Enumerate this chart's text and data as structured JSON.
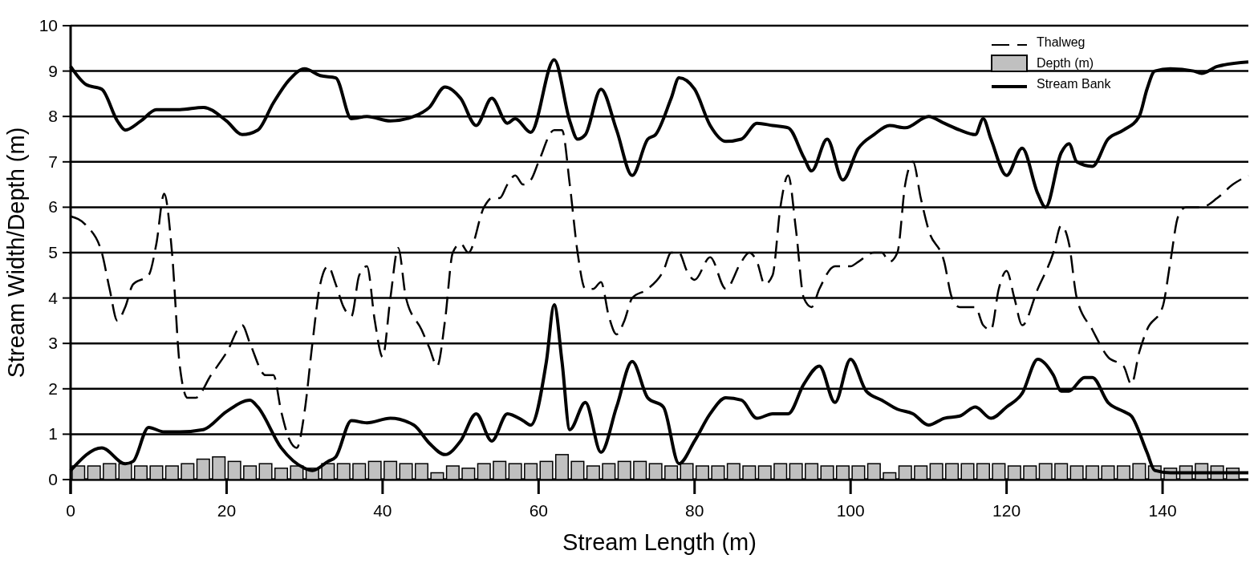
{
  "chart_data": {
    "type": "line",
    "xlabel": "Stream Length (m)",
    "ylabel": "Stream Width/Depth (m)",
    "xlim": [
      0,
      151
    ],
    "ylim": [
      0,
      10
    ],
    "xticks": [
      0,
      20,
      40,
      60,
      80,
      100,
      120,
      140
    ],
    "yticks": [
      0,
      1,
      2,
      3,
      4,
      5,
      6,
      7,
      8,
      9,
      10
    ],
    "grid": "y",
    "legend": "top right",
    "series": [
      {
        "name": "Thalweg",
        "color": "#000000",
        "line_style": "dashed",
        "x": [
          0,
          2,
          4,
          5,
          6,
          7,
          8,
          10,
          11,
          12,
          13,
          14,
          15,
          16,
          18,
          20,
          22,
          23,
          25,
          26,
          27,
          28,
          29,
          30,
          31,
          32,
          33,
          34,
          35,
          36,
          37,
          38,
          39,
          40,
          41,
          42,
          43,
          45,
          46,
          47,
          48,
          49,
          50,
          51,
          53,
          54,
          55,
          56,
          57,
          58,
          59,
          60,
          62,
          63,
          64,
          65,
          66,
          67,
          68,
          69,
          70,
          71,
          72,
          74,
          76,
          77,
          78,
          79,
          80,
          82,
          84,
          86,
          87,
          88,
          89,
          90,
          91,
          92,
          93,
          94,
          95,
          96,
          98,
          100,
          101,
          103,
          104,
          105,
          106,
          107,
          108,
          109,
          110,
          112,
          113,
          114,
          116,
          117,
          118,
          119,
          120,
          121,
          122,
          124,
          126,
          127,
          128,
          129,
          131,
          133,
          135,
          136,
          137,
          138,
          140,
          141,
          142,
          143,
          145,
          147,
          149,
          151
        ],
        "values": [
          5.8,
          5.6,
          5.0,
          4.2,
          3.5,
          3.8,
          4.3,
          4.5,
          5.2,
          6.3,
          5.0,
          2.5,
          1.8,
          1.8,
          2.3,
          2.8,
          3.4,
          3.0,
          2.3,
          2.3,
          1.5,
          0.9,
          0.7,
          1.5,
          3.0,
          4.3,
          4.7,
          4.3,
          3.8,
          3.6,
          4.5,
          4.7,
          3.5,
          2.7,
          4.0,
          5.1,
          4.0,
          3.3,
          2.9,
          2.5,
          3.5,
          5.0,
          5.2,
          5.0,
          6.0,
          6.2,
          6.2,
          6.5,
          6.7,
          6.5,
          6.6,
          7.0,
          7.7,
          7.7,
          6.5,
          5.0,
          4.2,
          4.2,
          4.35,
          3.6,
          3.2,
          3.5,
          4.0,
          4.2,
          4.6,
          5.0,
          5.0,
          4.6,
          4.4,
          4.9,
          4.2,
          4.8,
          5.0,
          4.8,
          4.3,
          4.5,
          6.0,
          6.7,
          5.5,
          4.0,
          3.8,
          4.2,
          4.7,
          4.7,
          4.8,
          5.0,
          5.0,
          4.8,
          5.0,
          6.5,
          7.0,
          6.2,
          5.5,
          4.8,
          4.0,
          3.8,
          3.8,
          3.4,
          3.3,
          4.2,
          4.6,
          4.0,
          3.4,
          4.2,
          5.0,
          5.6,
          5.2,
          4.0,
          3.3,
          2.7,
          2.5,
          2.1,
          2.8,
          3.3,
          3.8,
          4.8,
          5.8,
          6.0,
          6.0,
          6.2,
          6.5,
          6.7
        ]
      },
      {
        "name": "Depth (m)",
        "type": "bar",
        "color": "#c0c0c0",
        "x": [
          1,
          3,
          5,
          7,
          9,
          11,
          13,
          15,
          17,
          19,
          21,
          23,
          25,
          27,
          29,
          31,
          33,
          35,
          37,
          39,
          41,
          43,
          45,
          47,
          49,
          51,
          53,
          55,
          57,
          59,
          61,
          63,
          65,
          67,
          69,
          71,
          73,
          75,
          77,
          79,
          81,
          83,
          85,
          87,
          89,
          91,
          93,
          95,
          97,
          99,
          101,
          103,
          105,
          107,
          109,
          111,
          113,
          115,
          117,
          119,
          121,
          123,
          125,
          127,
          129,
          131,
          133,
          135,
          137,
          139,
          141,
          143,
          145,
          147,
          149
        ],
        "values": [
          0.3,
          0.3,
          0.35,
          0.35,
          0.3,
          0.3,
          0.3,
          0.35,
          0.45,
          0.5,
          0.4,
          0.3,
          0.35,
          0.25,
          0.3,
          0.25,
          0.35,
          0.35,
          0.35,
          0.4,
          0.4,
          0.35,
          0.35,
          0.15,
          0.3,
          0.25,
          0.35,
          0.4,
          0.35,
          0.35,
          0.4,
          0.55,
          0.4,
          0.3,
          0.35,
          0.4,
          0.4,
          0.35,
          0.3,
          0.35,
          0.3,
          0.3,
          0.35,
          0.3,
          0.3,
          0.35,
          0.35,
          0.35,
          0.3,
          0.3,
          0.3,
          0.35,
          0.15,
          0.3,
          0.3,
          0.35,
          0.35,
          0.35,
          0.35,
          0.35,
          0.3,
          0.3,
          0.35,
          0.35,
          0.3,
          0.3,
          0.3,
          0.3,
          0.35,
          0.3,
          0.25,
          0.3,
          0.35,
          0.3,
          0.25
        ]
      },
      {
        "name": "Stream Bank",
        "color": "#000000",
        "line_style": "solid",
        "x": [
          0,
          2,
          4,
          6,
          7,
          9,
          11,
          14,
          17,
          20,
          22,
          24,
          26,
          28,
          30,
          32,
          34,
          36,
          38,
          41,
          44,
          46,
          48,
          50,
          52,
          54,
          56,
          57,
          59,
          62,
          64,
          65,
          66,
          68,
          70,
          72,
          74,
          75,
          77,
          78,
          80,
          82,
          84,
          86,
          88,
          90,
          92,
          94,
          95,
          97,
          99,
          101,
          103,
          105,
          107,
          110,
          112,
          114,
          116,
          117,
          118,
          120,
          122,
          124,
          125,
          127,
          128,
          129,
          131,
          133,
          135,
          137,
          138,
          139,
          141,
          144,
          145,
          147,
          151
        ],
        "values": [
          9.1,
          8.7,
          8.6,
          7.9,
          7.7,
          7.9,
          8.15,
          8.15,
          8.2,
          7.9,
          7.6,
          7.7,
          8.3,
          8.8,
          9.05,
          8.9,
          8.85,
          7.95,
          8.0,
          7.9,
          8.0,
          8.2,
          8.65,
          8.4,
          7.8,
          8.4,
          7.85,
          7.95,
          7.65,
          9.25,
          7.9,
          7.5,
          7.6,
          8.6,
          7.7,
          6.7,
          7.5,
          7.6,
          8.4,
          8.85,
          8.6,
          7.8,
          7.45,
          7.5,
          7.85,
          7.8,
          7.75,
          7.1,
          6.8,
          7.5,
          6.6,
          7.3,
          7.6,
          7.8,
          7.75,
          8.0,
          7.85,
          7.7,
          7.6,
          7.95,
          7.5,
          6.7,
          7.3,
          6.3,
          6.0,
          7.2,
          7.4,
          7.0,
          6.9,
          7.5,
          7.7,
          8.0,
          8.6,
          9.0,
          9.05,
          9.0,
          8.95,
          9.1,
          9.2
        ]
      },
      {
        "color": "#000000",
        "line_style": "solid",
        "x": [
          0,
          4,
          7,
          8,
          10,
          12,
          14,
          17,
          20,
          23,
          24,
          27,
          30,
          31,
          33,
          34,
          36,
          38,
          41,
          44,
          46,
          48,
          50,
          52,
          54,
          56,
          58,
          59,
          61,
          62,
          63,
          64,
          66,
          68,
          70,
          72,
          74,
          76,
          78,
          80,
          82,
          84,
          86,
          88,
          90,
          92,
          94,
          96,
          98,
          100,
          102,
          104,
          106,
          108,
          110,
          112,
          114,
          116,
          118,
          120,
          122,
          124,
          126,
          127,
          128,
          130,
          131,
          133,
          135,
          136,
          138,
          139,
          141,
          151
        ],
        "values": [
          0.2,
          0.7,
          0.35,
          0.4,
          1.15,
          1.05,
          1.05,
          1.1,
          1.5,
          1.75,
          1.6,
          0.7,
          0.25,
          0.2,
          0.4,
          0.5,
          1.3,
          1.25,
          1.35,
          1.2,
          0.8,
          0.55,
          0.85,
          1.45,
          0.85,
          1.45,
          1.3,
          1.2,
          2.6,
          3.85,
          2.6,
          1.1,
          1.7,
          0.6,
          1.6,
          2.6,
          1.8,
          1.6,
          0.35,
          0.85,
          1.45,
          1.8,
          1.75,
          1.35,
          1.45,
          1.45,
          2.1,
          2.5,
          1.7,
          2.65,
          1.95,
          1.75,
          1.55,
          1.45,
          1.2,
          1.35,
          1.4,
          1.6,
          1.35,
          1.6,
          1.9,
          2.65,
          2.3,
          1.95,
          1.95,
          2.25,
          2.25,
          1.7,
          1.5,
          1.4,
          0.6,
          0.2,
          0.15,
          0.15
        ]
      }
    ]
  }
}
